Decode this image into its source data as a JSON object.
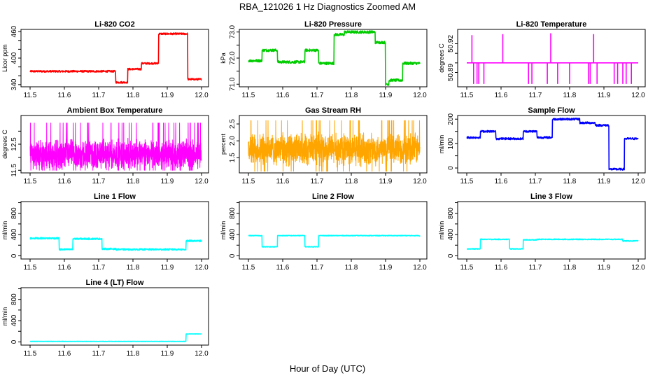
{
  "main_title": "RBA_121026  1 Hz Diagnostics Zoomed AM",
  "x_axis_label": "Hour of Day (UTC)",
  "chart_data": [
    {
      "type": "line",
      "title": "Li-820 CO2",
      "ylabel": "Licor ppm",
      "color": "#ff0000",
      "xlim": [
        11.5,
        12.0
      ],
      "ylim": [
        335,
        465
      ],
      "x_ticks": [
        "11.5",
        "11.6",
        "11.7",
        "11.8",
        "11.9",
        "12.0"
      ],
      "y_ticks": [
        "340",
        "400",
        "460"
      ],
      "y_tick_values": [
        340,
        400,
        460
      ],
      "y_minor_ticks": [
        360,
        380,
        420,
        440
      ],
      "noise": 2,
      "steps": [
        [
          11.5,
          370
        ],
        [
          11.75,
          345
        ],
        [
          11.785,
          375
        ],
        [
          11.825,
          388
        ],
        [
          11.875,
          455
        ],
        [
          11.96,
          352
        ],
        [
          12.0,
          352
        ]
      ]
    },
    {
      "type": "line",
      "title": "Li-820 Pressure",
      "ylabel": "kPa",
      "color": "#00cc00",
      "xlim": [
        11.5,
        12.0
      ],
      "ylim": [
        70.9,
        73.1
      ],
      "x_ticks": [
        "11.5",
        "11.6",
        "11.7",
        "11.8",
        "11.9",
        "12.0"
      ],
      "y_ticks": [
        "71.0",
        "72.0",
        "73.0"
      ],
      "y_tick_values": [
        71.0,
        72.0,
        73.0
      ],
      "y_minor_ticks": [
        71.5,
        72.5
      ],
      "noise": 0.05,
      "steps": [
        [
          11.5,
          71.9
        ],
        [
          11.54,
          72.3
        ],
        [
          11.585,
          71.85
        ],
        [
          11.665,
          72.3
        ],
        [
          11.705,
          71.8
        ],
        [
          11.75,
          72.9
        ],
        [
          11.78,
          73.0
        ],
        [
          11.87,
          72.6
        ],
        [
          11.9,
          71.0
        ],
        [
          11.91,
          71.15
        ],
        [
          11.95,
          71.8
        ],
        [
          12.0,
          71.8
        ]
      ]
    },
    {
      "type": "line",
      "title": "Li-820 Temperature",
      "ylabel": "degrees C",
      "color": "#ff00ff",
      "xlim": [
        11.5,
        12.0
      ],
      "ylim": [
        50.875,
        50.935
      ],
      "x_ticks": [
        "11.5",
        "11.6",
        "11.7",
        "11.8",
        "11.9",
        "12.0"
      ],
      "y_ticks": [
        "50.89",
        "50.92"
      ],
      "y_tick_values": [
        50.89,
        50.92
      ],
      "y_minor_ticks": [
        50.9,
        50.91
      ],
      "baseline": 50.9,
      "spikes": [
        [
          11.515,
          50.929
        ],
        [
          11.52,
          50.878
        ],
        [
          11.53,
          50.878
        ],
        [
          11.535,
          50.878
        ],
        [
          11.55,
          50.878
        ],
        [
          11.605,
          50.93
        ],
        [
          11.68,
          50.878
        ],
        [
          11.69,
          50.878
        ],
        [
          11.735,
          50.878
        ],
        [
          11.745,
          50.931
        ],
        [
          11.765,
          50.878
        ],
        [
          11.8,
          50.878
        ],
        [
          11.855,
          50.878
        ],
        [
          11.86,
          50.878
        ],
        [
          11.87,
          50.93
        ],
        [
          11.88,
          50.878
        ],
        [
          11.93,
          50.878
        ],
        [
          11.94,
          50.878
        ],
        [
          11.955,
          50.878
        ],
        [
          11.965,
          50.878
        ],
        [
          11.98,
          50.878
        ]
      ]
    },
    {
      "type": "line",
      "title": "Ambient Box Temperature",
      "ylabel": "degrees C",
      "color": "#ff00ff",
      "xlim": [
        11.5,
        12.0
      ],
      "ylim": [
        11.4,
        13.6
      ],
      "x_ticks": [
        "11.5",
        "11.6",
        "11.7",
        "11.8",
        "11.9",
        "12.0"
      ],
      "y_ticks": [
        "11.5",
        "12.5"
      ],
      "y_tick_values": [
        11.5,
        12.5
      ],
      "y_minor_ticks": [
        12.0,
        13.0
      ],
      "noisy": {
        "center": 12.1,
        "amp": 0.55,
        "min": 11.5,
        "max": 13.4
      }
    },
    {
      "type": "line",
      "title": "Gas Stream RH",
      "ylabel": "percent",
      "color": "#ffa500",
      "xlim": [
        11.5,
        12.0
      ],
      "ylim": [
        1.05,
        2.75
      ],
      "x_ticks": [
        "11.5",
        "11.6",
        "11.7",
        "11.8",
        "11.9",
        "12.0"
      ],
      "y_ticks": [
        "1.5",
        "2.0",
        "2.5"
      ],
      "y_tick_values": [
        1.5,
        2.0,
        2.5
      ],
      "y_minor_ticks": [],
      "noisy": {
        "center": 1.75,
        "amp": 0.45,
        "min": 1.1,
        "max": 2.6
      }
    },
    {
      "type": "line",
      "title": "Sample Flow",
      "ylabel": "ml/min",
      "color": "#0000ff",
      "xlim": [
        11.5,
        12.0
      ],
      "ylim": [
        -20,
        215
      ],
      "x_ticks": [
        "11.5",
        "11.6",
        "11.7",
        "11.8",
        "11.9",
        "12.0"
      ],
      "y_ticks": [
        "0",
        "100",
        "200"
      ],
      "y_tick_values": [
        0,
        100,
        200
      ],
      "y_minor_ticks": [
        50,
        150
      ],
      "noise": 4,
      "steps": [
        [
          11.5,
          125
        ],
        [
          11.54,
          150
        ],
        [
          11.585,
          120
        ],
        [
          11.665,
          150
        ],
        [
          11.705,
          125
        ],
        [
          11.75,
          200
        ],
        [
          11.83,
          185
        ],
        [
          11.875,
          175
        ],
        [
          11.915,
          -5
        ],
        [
          11.96,
          120
        ],
        [
          12.0,
          120
        ]
      ]
    },
    {
      "type": "line",
      "title": "Line 1 Flow",
      "ylabel": "ml/min",
      "color": "#00ffff",
      "xlim": [
        11.5,
        12.0
      ],
      "ylim": [
        -60,
        1020
      ],
      "x_ticks": [
        "11.5",
        "11.6",
        "11.7",
        "11.8",
        "11.9",
        "12.0"
      ],
      "y_ticks": [
        "0",
        "400",
        "800"
      ],
      "y_tick_values": [
        0,
        400,
        800
      ],
      "y_minor_ticks": [
        200,
        600,
        1000
      ],
      "noise": 15,
      "steps": [
        [
          11.5,
          330
        ],
        [
          11.585,
          120
        ],
        [
          11.625,
          320
        ],
        [
          11.71,
          130
        ],
        [
          11.75,
          120
        ],
        [
          11.955,
          280
        ],
        [
          12.0,
          280
        ]
      ]
    },
    {
      "type": "line",
      "title": "Line 2 Flow",
      "ylabel": "ml/min",
      "color": "#00ffff",
      "xlim": [
        11.5,
        12.0
      ],
      "ylim": [
        -60,
        1020
      ],
      "x_ticks": [
        "11.5",
        "11.6",
        "11.7",
        "11.8",
        "11.9",
        "12.0"
      ],
      "y_ticks": [
        "0",
        "400",
        "800"
      ],
      "y_tick_values": [
        0,
        400,
        800
      ],
      "y_minor_ticks": [
        200,
        600,
        1000
      ],
      "noise": 6,
      "steps": [
        [
          11.5,
          380
        ],
        [
          11.54,
          170
        ],
        [
          11.585,
          380
        ],
        [
          11.665,
          170
        ],
        [
          11.705,
          380
        ],
        [
          12.0,
          360
        ]
      ]
    },
    {
      "type": "line",
      "title": "Line 3 Flow",
      "ylabel": "ml/min",
      "color": "#00ffff",
      "xlim": [
        11.5,
        12.0
      ],
      "ylim": [
        -60,
        1020
      ],
      "x_ticks": [
        "11.5",
        "11.6",
        "11.7",
        "11.8",
        "11.9",
        "12.0"
      ],
      "y_ticks": [
        "0",
        "400",
        "800"
      ],
      "y_tick_values": [
        0,
        400,
        800
      ],
      "y_minor_ticks": [
        200,
        600,
        1000
      ],
      "noise": 8,
      "steps": [
        [
          11.5,
          130
        ],
        [
          11.54,
          310
        ],
        [
          11.625,
          130
        ],
        [
          11.665,
          300
        ],
        [
          11.705,
          310
        ],
        [
          11.955,
          280
        ],
        [
          12.0,
          280
        ]
      ]
    },
    {
      "type": "line",
      "title": "Line 4 (LT) Flow",
      "ylabel": "ml/min",
      "color": "#00ffff",
      "xlim": [
        11.5,
        12.0
      ],
      "ylim": [
        -60,
        1020
      ],
      "x_ticks": [
        "11.5",
        "11.6",
        "11.7",
        "11.8",
        "11.9",
        "12.0"
      ],
      "y_ticks": [
        "0",
        "400",
        "800"
      ],
      "y_tick_values": [
        0,
        400,
        800
      ],
      "y_minor_ticks": [
        200,
        600,
        1000
      ],
      "noise": 3,
      "steps": [
        [
          11.5,
          10
        ],
        [
          11.955,
          150
        ],
        [
          12.0,
          150
        ]
      ]
    }
  ]
}
